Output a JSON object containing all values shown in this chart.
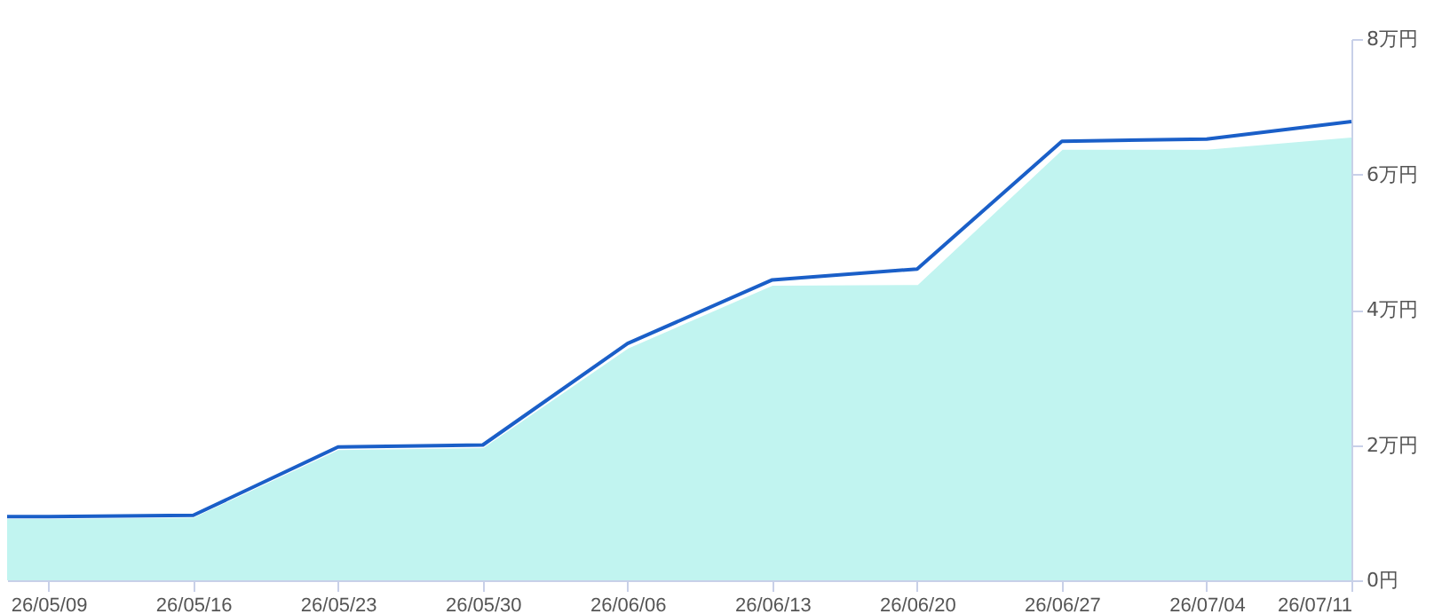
{
  "chart_data": {
    "type": "area",
    "x": [
      "--05-07",
      "--05-09",
      "--05-16",
      "--05-23",
      "--05-30",
      "--06-06",
      "--06-13",
      "--06-20",
      "--06-27",
      "--07-04",
      "--07-11"
    ],
    "series": [
      {
        "color": "#a6f0ea",
        "values": [
          0.93,
          0.93,
          0.95,
          1.95,
          1.98,
          3.45,
          4.38,
          4.39,
          6.39,
          6.39,
          6.57
        ]
      },
      {
        "type": "line",
        "color": "#1a5fc8",
        "values": [
          0.94,
          0.94,
          0.96,
          1.97,
          2.0,
          3.5,
          4.44,
          4.6,
          6.49,
          6.52,
          6.78
        ]
      }
    ],
    "xlim": [
      "--05-07",
      "--07-11"
    ],
    "xticks": [
      {
        "value": "--05-09",
        "label": "26/05/09"
      },
      {
        "value": "--05-16",
        "label": "26/05/16"
      },
      {
        "value": "--05-23",
        "label": "26/05/23"
      },
      {
        "value": "--05-30",
        "label": "26/05/30"
      },
      {
        "value": "--06-06",
        "label": "26/06/06"
      },
      {
        "value": "--06-13",
        "label": "26/06/13"
      },
      {
        "value": "--06-20",
        "label": "26/06/20"
      },
      {
        "value": "--06-27",
        "label": "26/06/27"
      },
      {
        "value": "--07-04",
        "label": "26/07/04"
      },
      {
        "value": "--07-11",
        "label": "26/07/11"
      }
    ],
    "ylim": [
      0,
      8
    ],
    "yticks": [
      {
        "value": 0,
        "label": "0円"
      },
      {
        "value": 2,
        "label": "2万円"
      },
      {
        "value": 4,
        "label": "4万円"
      },
      {
        "value": 6,
        "label": "6万円"
      },
      {
        "value": 8,
        "label": "8万円"
      }
    ],
    "grid": false,
    "marker": "none",
    "line_style": "solid"
  }
}
